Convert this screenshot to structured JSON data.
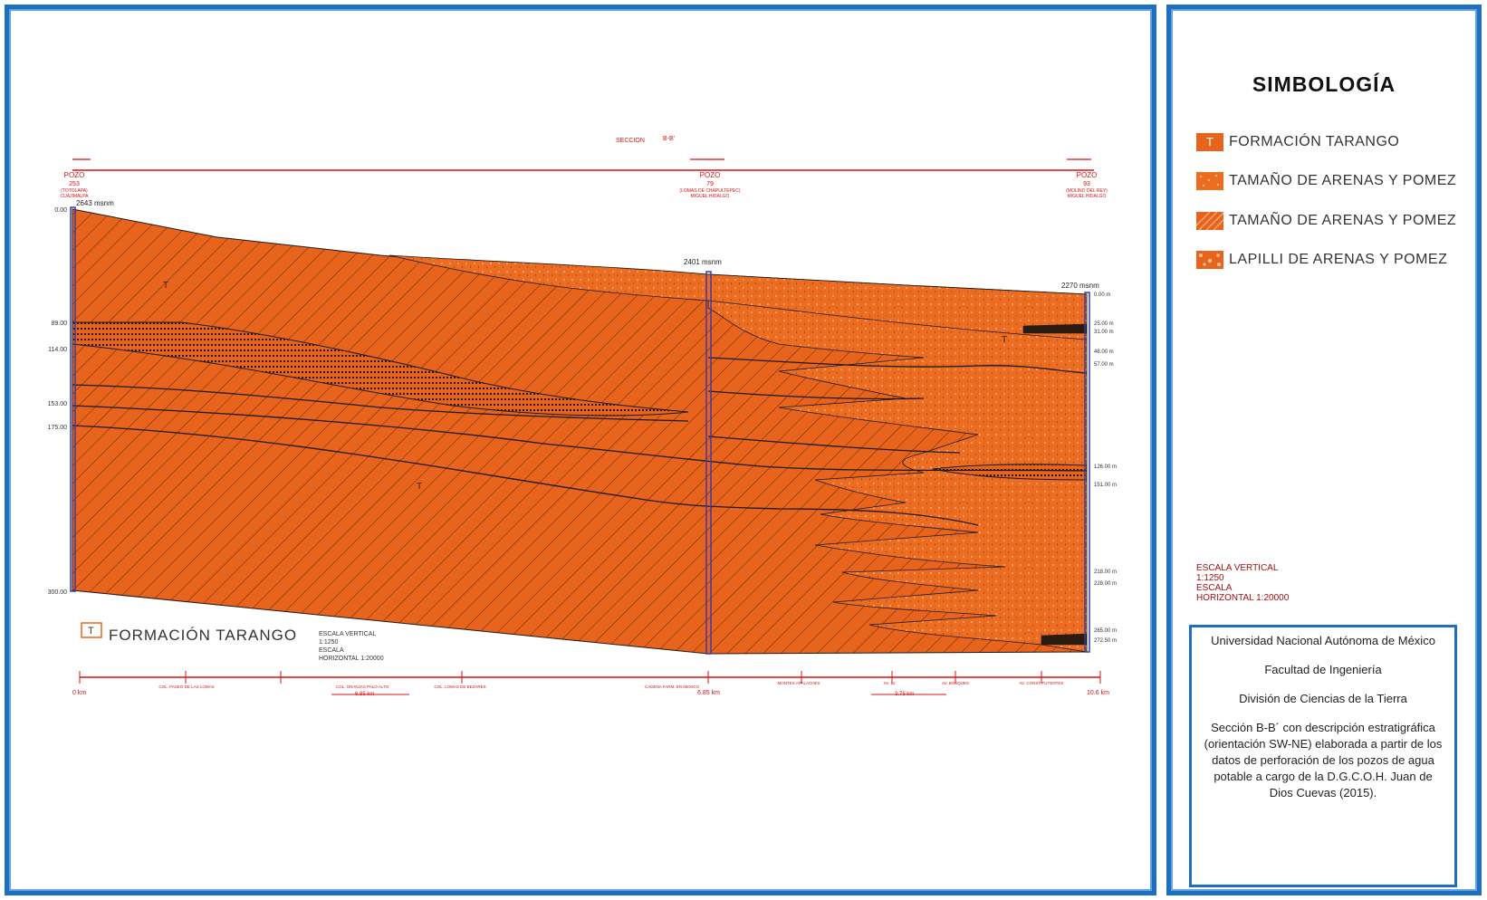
{
  "section": {
    "title_prefix": "SECCION",
    "title_id": "B-B'",
    "wells": [
      {
        "label": "POZO",
        "number": "253",
        "sub1": "(TOTOLAPA)",
        "sub2": "CUAJIMALPA",
        "elevation": "2643 msnm"
      },
      {
        "label": "POZO",
        "number": "79",
        "sub1": "(LOMAS DE CHAPULTEPEC)",
        "sub2": "MIGUEL HIDALGO",
        "elevation": "2401 msnm"
      },
      {
        "label": "POZO",
        "number": "93",
        "sub1": "(MOLINO DEL REY)",
        "sub2": "MIGUEL HIDALGO",
        "elevation": "2270 msnm"
      }
    ],
    "left_depths": [
      "0.00",
      "89.00",
      "114.00",
      "153.00",
      "175.00",
      "300.00"
    ],
    "right_depths": [
      "0.00 m",
      "25.00 m",
      "31.00 m",
      "46.00 m",
      "57.00 m",
      "126.00 m",
      "151.00 m",
      "218.00 m",
      "228.00 m",
      "265.00 m",
      "272.50 m"
    ],
    "unit_marker": "T",
    "inset_legend": {
      "symbol": "T",
      "label": "FORMACIÓN TARANGO"
    },
    "scale_note": [
      "ESCALA VERTICAL",
      "1:1250",
      "ESCALA",
      "HORIZONTAL 1:20000"
    ],
    "distance_axis": {
      "start": "0 km",
      "end": "10.6 km",
      "middle": "6.85 km",
      "segments": [
        "6.85 km",
        "3.75 km"
      ],
      "places": [
        "COL. PASEO DE LAS LOMAS",
        "COL. GRANJAS PALO ALTO",
        "COL. LOMAS DE BEZARES",
        "CADENA FARM. EN MEXICO",
        "MONTES APALACHES",
        "AV. 12",
        "AV. BOSQUES",
        "AV. CONSTITUYENTES"
      ]
    }
  },
  "legend": {
    "title": "SIMBOLOGÍA",
    "items": [
      {
        "symbol": "T",
        "label": "FORMACIÓN TARANGO"
      },
      {
        "symbol": "",
        "label": "TAMAÑO DE ARENAS Y POMEZ"
      },
      {
        "symbol": "",
        "label": "TAMAÑO DE ARENAS Y POMEZ"
      },
      {
        "symbol": "",
        "label": "LAPILLI DE ARENAS Y POMEZ"
      }
    ],
    "scale_note": [
      "ESCALA VERTICAL",
      "1:1250",
      "ESCALA",
      "HORIZONTAL 1:20000"
    ]
  },
  "info": {
    "university": "Universidad Nacional Autónoma de México",
    "faculty": "Facultad de Ingeniería",
    "division": "División de Ciencias de la Tierra",
    "description": "Sección B-B´ con descripción estratigráfica (orientación SW-NE) elaborada a partir de los datos de perforación de los pozos de agua potable a cargo de la D.G.C.O.H. Juan de Dios Cuevas (2015)."
  },
  "colors": {
    "fill": "#e8641c",
    "fill_light": "#f07a2a",
    "line": "#1a1a1a",
    "annotation_red": "#d41414",
    "well_blue": "#3a3aa8",
    "frame_blue": "#1f6fc0"
  }
}
